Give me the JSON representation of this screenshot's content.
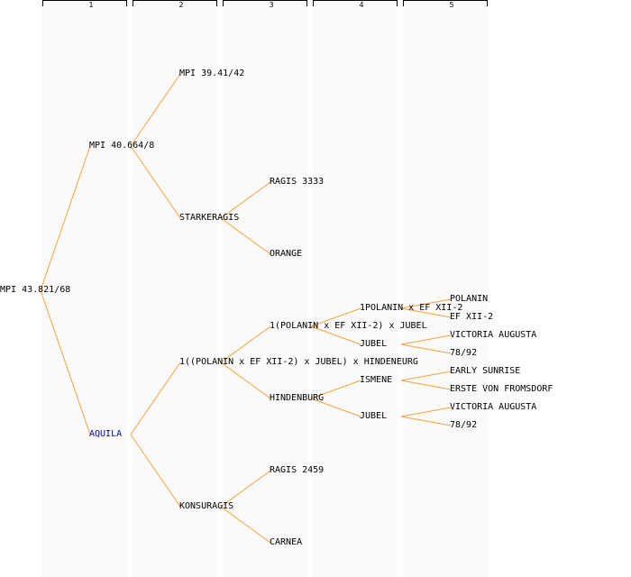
{
  "columns": [
    "1",
    "2",
    "3",
    "4",
    "5"
  ],
  "colors": {
    "line": "#f7a23e",
    "text": "#000000",
    "highlight": "#0000cc"
  },
  "nodes": {
    "root": "MPI 43.821/68",
    "sire": "MPI 40.664/8",
    "dam": "AQUILA",
    "ss": "MPI 39.41/42",
    "sd": "STARKERAGIS",
    "sdd_s": "RAGIS 3333",
    "sdd_d": "ORANGE",
    "ds": "1((POLANIN x EF XII-2) x JUBEL) x HINDENEURG",
    "dd": "KONSURAGIS",
    "dss": "1(POLANIN x EF XII-2) x JUBEL",
    "dsd": "HINDENBURG",
    "dds": "RAGIS 2459",
    "ddd": "CARNEA",
    "dsss": "1POLANIN x EF XII-2",
    "dssd": "JUBEL",
    "dsds": "ISMENE",
    "dsdd": "JUBEL",
    "g5_1": "POLANIN",
    "g5_2": "EF XII-2",
    "g5_3": "VICTORIA AUGUSTA",
    "g5_4": "78/92",
    "g5_5": "EARLY SUNRISE",
    "g5_6": "ERSTE VON FROMSDORF",
    "g5_7": "VICTORIA AUGUSTA",
    "g5_8": "78/92"
  }
}
